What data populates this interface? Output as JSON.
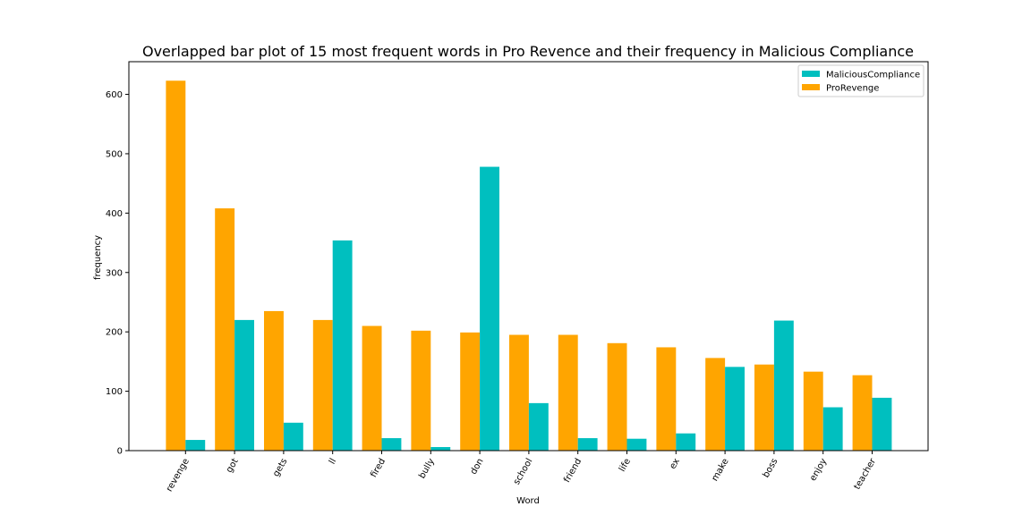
{
  "chart_data": {
    "type": "bar",
    "title": "Overlapped bar plot of 15 most frequent words in Pro Revence and their frequency in Malicious Compliance",
    "xlabel": "Word",
    "ylabel": "frequency",
    "categories": [
      "revenge",
      "got",
      "gets",
      "ll",
      "fired",
      "bully",
      "don",
      "school",
      "friend",
      "life",
      "ex",
      "make",
      "boss",
      "enjoy",
      "teacher"
    ],
    "series": [
      {
        "name": "ProRevenge",
        "color": "#ffa500",
        "values": [
          623,
          408,
          235,
          220,
          210,
          202,
          199,
          195,
          195,
          181,
          174,
          156,
          145,
          133,
          127
        ]
      },
      {
        "name": "MaliciousCompliance",
        "color": "#00bfbf",
        "values": [
          18,
          220,
          47,
          354,
          21,
          6,
          478,
          80,
          21,
          20,
          29,
          141,
          219,
          73,
          89
        ]
      }
    ],
    "ylim": [
      0,
      655
    ],
    "yticks": [
      0,
      100,
      200,
      300,
      400,
      500,
      600
    ],
    "legend": {
      "position": "top-right",
      "entries": [
        "MaliciousCompliance",
        "ProRevenge"
      ]
    },
    "grid": false
  }
}
